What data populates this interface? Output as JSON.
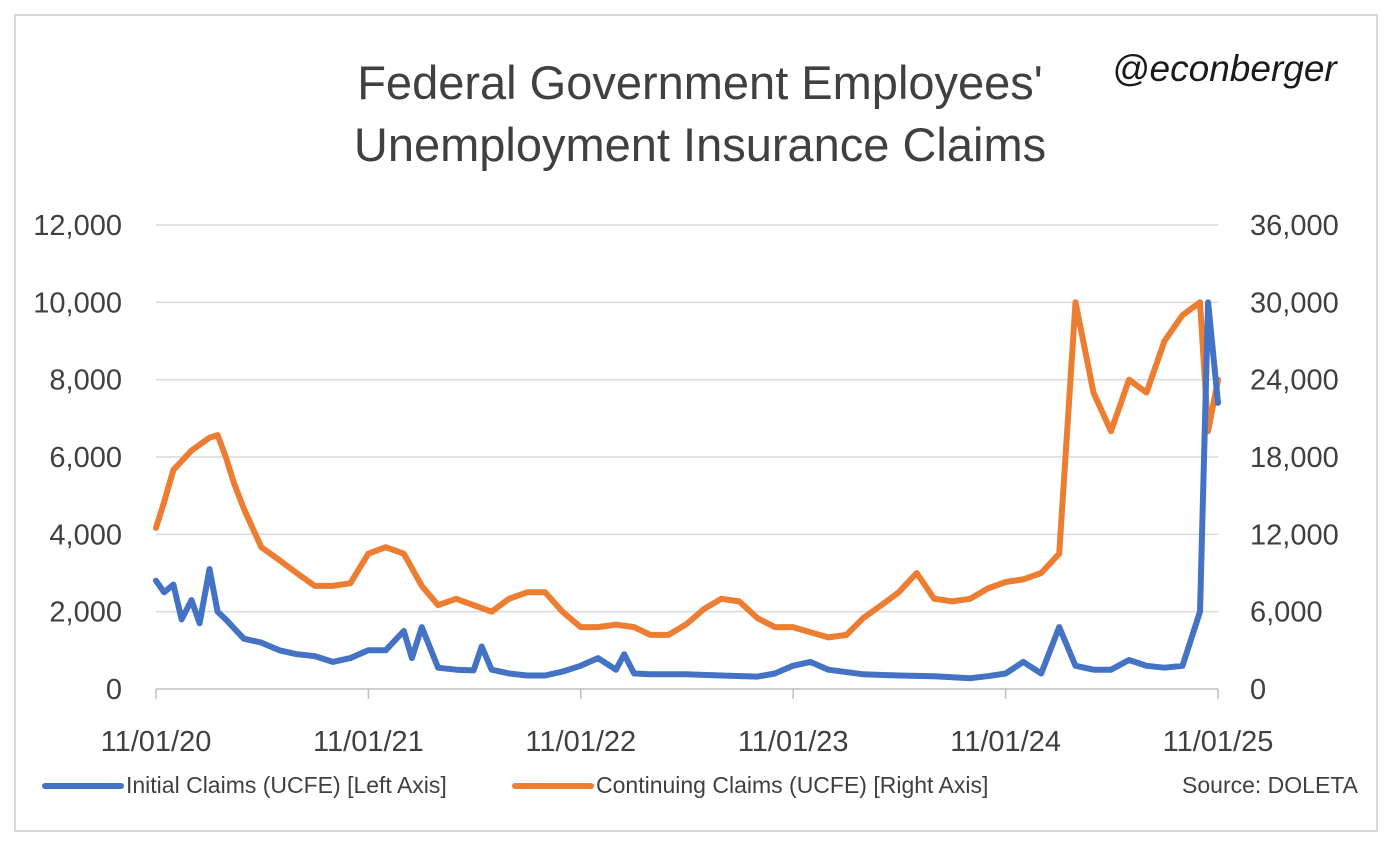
{
  "handle": "@econberger",
  "source": "Source: DOLETA",
  "chart_data": {
    "type": "line",
    "title_lines": [
      "Federal Government Employees'",
      "Unemployment Insurance Claims"
    ],
    "xlabel": "",
    "ylabel_left": "",
    "ylabel_right": "",
    "x_ticks": [
      "11/01/20",
      "11/01/21",
      "11/01/22",
      "11/01/23",
      "11/01/24",
      "11/01/25"
    ],
    "x_range": [
      "2020-11-01",
      "2025-11-01"
    ],
    "y_left": {
      "range": [
        0,
        12000
      ],
      "ticks": [
        "0",
        "2,000",
        "4,000",
        "6,000",
        "8,000",
        "10,000",
        "12,000"
      ]
    },
    "y_right": {
      "range": [
        0,
        36000
      ],
      "ticks": [
        "0",
        "6,000",
        "12,000",
        "18,000",
        "24,000",
        "30,000",
        "36,000"
      ]
    },
    "grid": true,
    "legend_position": "bottom",
    "series": [
      {
        "name": "Initial Claims (UCFE) [Left Axis]",
        "axis": "left",
        "color": "#4472c4",
        "x": [
          "2020-11-01",
          "2020-11-15",
          "2020-12-01",
          "2020-12-15",
          "2021-01-01",
          "2021-01-15",
          "2021-02-01",
          "2021-02-15",
          "2021-03-01",
          "2021-04-01",
          "2021-05-01",
          "2021-06-01",
          "2021-07-01",
          "2021-08-01",
          "2021-09-01",
          "2021-10-01",
          "2021-11-01",
          "2021-12-01",
          "2022-01-01",
          "2022-01-15",
          "2022-02-01",
          "2022-03-01",
          "2022-04-01",
          "2022-05-01",
          "2022-05-15",
          "2022-06-01",
          "2022-07-01",
          "2022-08-01",
          "2022-09-01",
          "2022-10-01",
          "2022-11-01",
          "2022-12-01",
          "2023-01-01",
          "2023-01-15",
          "2023-02-01",
          "2023-03-01",
          "2023-05-01",
          "2023-07-01",
          "2023-09-01",
          "2023-10-01",
          "2023-11-01",
          "2023-12-01",
          "2024-01-01",
          "2024-03-01",
          "2024-05-01",
          "2024-07-01",
          "2024-09-01",
          "2024-10-01",
          "2024-11-01",
          "2024-12-01",
          "2025-01-01",
          "2025-02-01",
          "2025-02-15",
          "2025-03-01",
          "2025-04-01",
          "2025-05-01",
          "2025-06-01",
          "2025-07-01",
          "2025-08-01",
          "2025-09-01",
          "2025-10-01",
          "2025-10-15",
          "2025-11-01"
        ],
        "values": [
          2800,
          2500,
          2700,
          1800,
          2300,
          1700,
          3100,
          2000,
          1800,
          1300,
          1200,
          1000,
          900,
          850,
          700,
          800,
          1000,
          1000,
          1500,
          800,
          1600,
          550,
          500,
          480,
          1100,
          500,
          400,
          350,
          350,
          450,
          600,
          800,
          500,
          900,
          400,
          380,
          380,
          350,
          320,
          400,
          600,
          700,
          500,
          380,
          350,
          330,
          280,
          330,
          400,
          700,
          400,
          1600,
          1100,
          600,
          500,
          500,
          750,
          600,
          550,
          600,
          2000,
          10000,
          7400
        ]
      },
      {
        "name": "Continuing Claims (UCFE) [Right Axis]",
        "axis": "right",
        "color": "#ed7d31",
        "x": [
          "2020-11-01",
          "2020-11-15",
          "2020-12-01",
          "2021-01-01",
          "2021-02-01",
          "2021-02-15",
          "2021-03-01",
          "2021-03-15",
          "2021-04-01",
          "2021-05-01",
          "2021-06-01",
          "2021-07-01",
          "2021-08-01",
          "2021-09-01",
          "2021-10-01",
          "2021-11-01",
          "2021-12-01",
          "2022-01-01",
          "2022-02-01",
          "2022-03-01",
          "2022-04-01",
          "2022-05-01",
          "2022-06-01",
          "2022-07-01",
          "2022-08-01",
          "2022-09-01",
          "2022-10-01",
          "2022-11-01",
          "2022-12-01",
          "2023-01-01",
          "2023-02-01",
          "2023-03-01",
          "2023-04-01",
          "2023-05-01",
          "2023-06-01",
          "2023-07-01",
          "2023-08-01",
          "2023-09-01",
          "2023-10-01",
          "2023-11-01",
          "2023-12-01",
          "2024-01-01",
          "2024-02-01",
          "2024-03-01",
          "2024-04-01",
          "2024-05-01",
          "2024-06-01",
          "2024-07-01",
          "2024-08-01",
          "2024-09-01",
          "2024-10-01",
          "2024-11-01",
          "2024-12-01",
          "2025-01-01",
          "2025-02-01",
          "2025-03-01",
          "2025-04-01",
          "2025-05-01",
          "2025-06-01",
          "2025-07-01",
          "2025-08-01",
          "2025-09-01",
          "2025-10-01",
          "2025-10-15",
          "2025-11-01"
        ],
        "values": [
          12500,
          14500,
          17000,
          18500,
          19500,
          19700,
          18000,
          16000,
          14000,
          11000,
          10000,
          9000,
          8000,
          8000,
          8200,
          10500,
          11000,
          10500,
          8000,
          6500,
          7000,
          6500,
          6000,
          7000,
          7500,
          7500,
          6000,
          4800,
          4800,
          5000,
          4800,
          4200,
          4200,
          5000,
          6200,
          7000,
          6800,
          5500,
          4800,
          4800,
          4400,
          4000,
          4200,
          5500,
          6500,
          7500,
          9000,
          7000,
          6800,
          7000,
          7800,
          8300,
          8500,
          9000,
          10500,
          30000,
          23000,
          20000,
          24000,
          23000,
          27000,
          29000,
          30000,
          20000,
          24000
        ]
      }
    ]
  }
}
